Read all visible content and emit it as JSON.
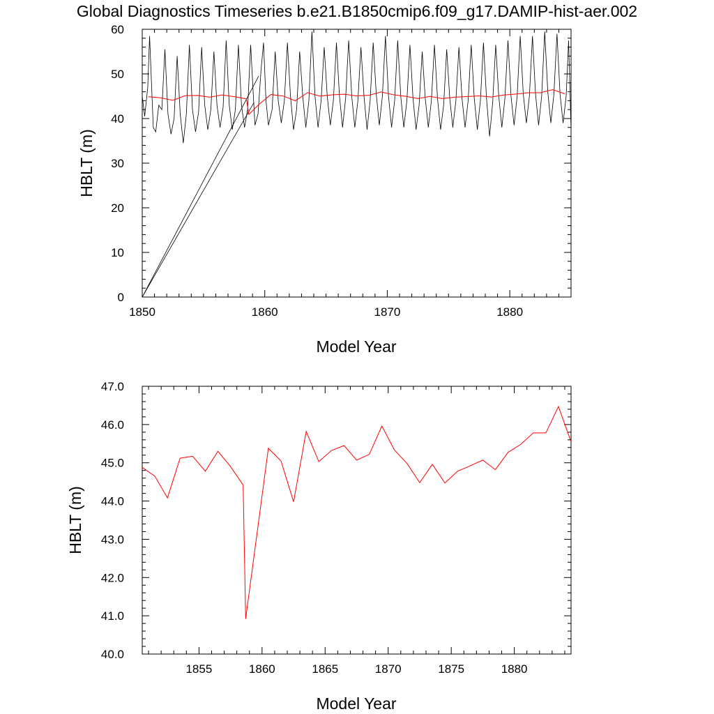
{
  "title": "Global Diagnostics Timeseries b.e21.B1850cmip6.f09_g17.DAMIP-hist-aer.002",
  "colors": {
    "monthly_line": "#000000",
    "annual_line": "#ff0000",
    "axis": "#000000"
  },
  "chart_data": [
    {
      "type": "line",
      "xlabel": "Model Year",
      "ylabel": "HBLT (m)",
      "xlim": [
        1850,
        1885
      ],
      "ylim": [
        0,
        60
      ],
      "xticks": [
        "1850",
        "1860",
        "1870",
        "1880"
      ],
      "yticks": [
        "0",
        "10",
        "20",
        "30",
        "40",
        "50",
        "60"
      ],
      "grid": false,
      "series": [
        {
          "color": "#000000",
          "description": "monthly values, seasonal cycle ~37–59 m; spurious straight segments from 1850 (0 m) to late-1859 values",
          "points": [
            [
              1850.0,
              0
            ],
            [
              1859.5,
              49.5
            ],
            [
              1850.0,
              0
            ],
            [
              1859.1,
              43.5
            ],
            [
              1859.2,
              38.5
            ],
            [
              1859.45,
              41.0
            ],
            [
              1859.7,
              51.0
            ],
            [
              1859.9,
              57.0
            ],
            [
              1860.1,
              44.0
            ],
            [
              1860.3,
              38.5
            ],
            [
              1860.6,
              42.0
            ],
            [
              1860.85,
              55.0
            ],
            [
              1861.1,
              44.0
            ],
            [
              1861.35,
              39.0
            ],
            [
              1861.6,
              44.0
            ],
            [
              1861.85,
              57.0
            ],
            [
              1862.1,
              45.0
            ],
            [
              1862.35,
              37.5
            ],
            [
              1862.6,
              42.0
            ],
            [
              1862.85,
              55.0
            ],
            [
              1863.1,
              45.0
            ],
            [
              1863.35,
              38.0
            ],
            [
              1863.6,
              44.0
            ],
            [
              1863.85,
              59.5
            ],
            [
              1864.1,
              45.0
            ],
            [
              1864.35,
              38.0
            ],
            [
              1864.6,
              44.0
            ],
            [
              1864.85,
              56.0
            ],
            [
              1865.1,
              45.0
            ],
            [
              1865.35,
              38.5
            ],
            [
              1865.6,
              44.0
            ],
            [
              1865.85,
              57.0
            ],
            [
              1866.1,
              45.0
            ],
            [
              1866.35,
              38.0
            ],
            [
              1866.6,
              44.5
            ],
            [
              1866.85,
              57.5
            ],
            [
              1867.1,
              45.0
            ],
            [
              1867.35,
              38.0
            ],
            [
              1867.6,
              44.0
            ],
            [
              1867.85,
              56.0
            ],
            [
              1868.1,
              45.0
            ],
            [
              1868.35,
              37.5
            ],
            [
              1868.6,
              44.0
            ],
            [
              1868.85,
              57.0
            ],
            [
              1869.1,
              45.5
            ],
            [
              1869.35,
              38.5
            ],
            [
              1869.6,
              45.0
            ],
            [
              1869.85,
              58.5
            ],
            [
              1870.1,
              45.0
            ],
            [
              1870.35,
              38.0
            ],
            [
              1870.6,
              44.0
            ],
            [
              1870.85,
              57.5
            ],
            [
              1871.1,
              45.0
            ],
            [
              1871.35,
              38.0
            ],
            [
              1871.6,
              44.0
            ],
            [
              1871.85,
              56.5
            ],
            [
              1872.1,
              44.5
            ],
            [
              1872.35,
              37.5
            ],
            [
              1872.6,
              43.0
            ],
            [
              1872.85,
              55.0
            ],
            [
              1873.1,
              44.5
            ],
            [
              1873.35,
              38.0
            ],
            [
              1873.6,
              44.0
            ],
            [
              1873.85,
              56.5
            ],
            [
              1874.1,
              44.5
            ],
            [
              1874.35,
              37.5
            ],
            [
              1874.6,
              43.0
            ],
            [
              1874.85,
              55.5
            ],
            [
              1875.1,
              44.5
            ],
            [
              1875.35,
              38.0
            ],
            [
              1875.6,
              44.0
            ],
            [
              1875.85,
              56.0
            ],
            [
              1876.1,
              44.5
            ],
            [
              1876.35,
              38.0
            ],
            [
              1876.6,
              44.0
            ],
            [
              1876.85,
              56.5
            ],
            [
              1877.1,
              44.5
            ],
            [
              1877.35,
              37.5
            ],
            [
              1877.6,
              44.0
            ],
            [
              1877.85,
              57.0
            ],
            [
              1878.1,
              44.5
            ],
            [
              1878.35,
              36.0
            ],
            [
              1878.6,
              43.5
            ],
            [
              1878.85,
              56.5
            ],
            [
              1879.1,
              45.0
            ],
            [
              1879.35,
              38.0
            ],
            [
              1879.6,
              44.5
            ],
            [
              1879.85,
              57.5
            ],
            [
              1880.1,
              45.0
            ],
            [
              1880.35,
              38.5
            ],
            [
              1880.6,
              45.0
            ],
            [
              1880.85,
              58.5
            ],
            [
              1881.1,
              45.5
            ],
            [
              1881.35,
              39.0
            ],
            [
              1881.6,
              45.0
            ],
            [
              1881.85,
              58.5
            ],
            [
              1882.1,
              45.5
            ],
            [
              1882.35,
              38.5
            ],
            [
              1882.6,
              45.0
            ],
            [
              1882.85,
              59.5
            ],
            [
              1883.1,
              46.0
            ],
            [
              1883.35,
              39.0
            ],
            [
              1883.6,
              45.5
            ],
            [
              1883.85,
              59.0
            ],
            [
              1884.1,
              45.5
            ],
            [
              1884.35,
              39.0
            ],
            [
              1884.6,
              45.0
            ],
            [
              1884.8,
              57.5
            ],
            [
              1885.0,
              37.5
            ]
          ],
          "early_cycle": [
            [
              1850.0,
              45.0
            ],
            [
              1850.2,
              40.5
            ],
            [
              1850.45,
              47.0
            ],
            [
              1850.6,
              58.5
            ],
            [
              1850.9,
              38.0
            ],
            [
              1851.1,
              37.0
            ],
            [
              1851.35,
              43.0
            ],
            [
              1851.6,
              42.0
            ],
            [
              1851.85,
              55.5
            ],
            [
              1852.1,
              41.0
            ],
            [
              1852.35,
              36.5
            ],
            [
              1852.6,
              40.0
            ],
            [
              1852.85,
              54.0
            ],
            [
              1853.1,
              41.0
            ],
            [
              1853.35,
              34.5
            ],
            [
              1853.6,
              41.0
            ],
            [
              1853.85,
              56.5
            ],
            [
              1854.1,
              42.0
            ],
            [
              1854.35,
              37.0
            ],
            [
              1854.6,
              41.5
            ],
            [
              1854.85,
              56.0
            ],
            [
              1855.1,
              43.0
            ],
            [
              1855.35,
              37.5
            ],
            [
              1855.6,
              42.0
            ],
            [
              1855.85,
              55.0
            ],
            [
              1856.1,
              43.0
            ],
            [
              1856.35,
              38.0
            ],
            [
              1856.6,
              42.5
            ],
            [
              1856.85,
              57.5
            ],
            [
              1857.1,
              43.0
            ],
            [
              1857.35,
              37.5
            ],
            [
              1857.6,
              42.0
            ],
            [
              1857.85,
              56.5
            ],
            [
              1858.1,
              43.0
            ],
            [
              1858.35,
              38.0
            ],
            [
              1858.6,
              42.0
            ],
            [
              1858.85,
              56.5
            ],
            [
              1859.1,
              43.5
            ]
          ]
        },
        {
          "color": "#ff0000",
          "description": "annual mean",
          "x": [
            1850.5,
            1851.5,
            1852.5,
            1853.5,
            1854.5,
            1855.5,
            1856.5,
            1857.5,
            1858.5,
            1858.7,
            1859.5,
            1860.5,
            1861.5,
            1862.5,
            1863.5,
            1864.5,
            1865.5,
            1866.5,
            1867.5,
            1868.5,
            1869.5,
            1870.5,
            1871.5,
            1872.5,
            1873.5,
            1874.5,
            1875.5,
            1876.5,
            1877.5,
            1878.5,
            1879.5,
            1880.5,
            1881.5,
            1882.5,
            1883.5,
            1884.5
          ],
          "values": [
            44.88,
            44.65,
            44.08,
            45.12,
            45.17,
            44.78,
            45.3,
            44.9,
            44.42,
            40.92,
            43.1,
            45.38,
            45.05,
            43.98,
            45.82,
            45.03,
            45.32,
            45.45,
            45.07,
            45.22,
            45.96,
            45.33,
            44.98,
            44.48,
            44.96,
            44.47,
            44.78,
            44.92,
            45.07,
            44.82,
            45.27,
            45.48,
            45.78,
            45.78,
            46.47,
            45.55
          ]
        }
      ]
    },
    {
      "type": "line",
      "xlabel": "Model Year",
      "ylabel": "HBLT (m)",
      "xlim": [
        1850.5,
        1884.5
      ],
      "ylim": [
        40,
        47
      ],
      "xticks": [
        "1855",
        "1860",
        "1865",
        "1870",
        "1875",
        "1880"
      ],
      "yticks": [
        "40.0",
        "41.0",
        "42.0",
        "43.0",
        "44.0",
        "45.0",
        "46.0",
        "47.0"
      ],
      "grid": false,
      "series": [
        {
          "color": "#ff0000",
          "description": "annual mean",
          "x": [
            1850.5,
            1851.5,
            1852.5,
            1853.5,
            1854.5,
            1855.5,
            1856.5,
            1857.5,
            1858.5,
            1858.7,
            1860.5,
            1861.5,
            1862.5,
            1863.5,
            1864.5,
            1865.5,
            1866.5,
            1867.5,
            1868.5,
            1869.5,
            1870.5,
            1871.5,
            1872.5,
            1873.5,
            1874.5,
            1875.5,
            1876.5,
            1877.5,
            1878.5,
            1879.5,
            1880.5,
            1881.5,
            1882.5,
            1883.5,
            1884.5
          ],
          "values": [
            44.88,
            44.65,
            44.08,
            45.12,
            45.17,
            44.78,
            45.3,
            44.9,
            44.42,
            40.92,
            45.38,
            45.05,
            43.98,
            45.82,
            45.03,
            45.32,
            45.45,
            45.07,
            45.22,
            45.96,
            45.33,
            44.98,
            44.48,
            44.96,
            44.47,
            44.78,
            44.92,
            45.07,
            44.82,
            45.27,
            45.48,
            45.78,
            45.78,
            46.47,
            45.55
          ]
        }
      ]
    }
  ]
}
